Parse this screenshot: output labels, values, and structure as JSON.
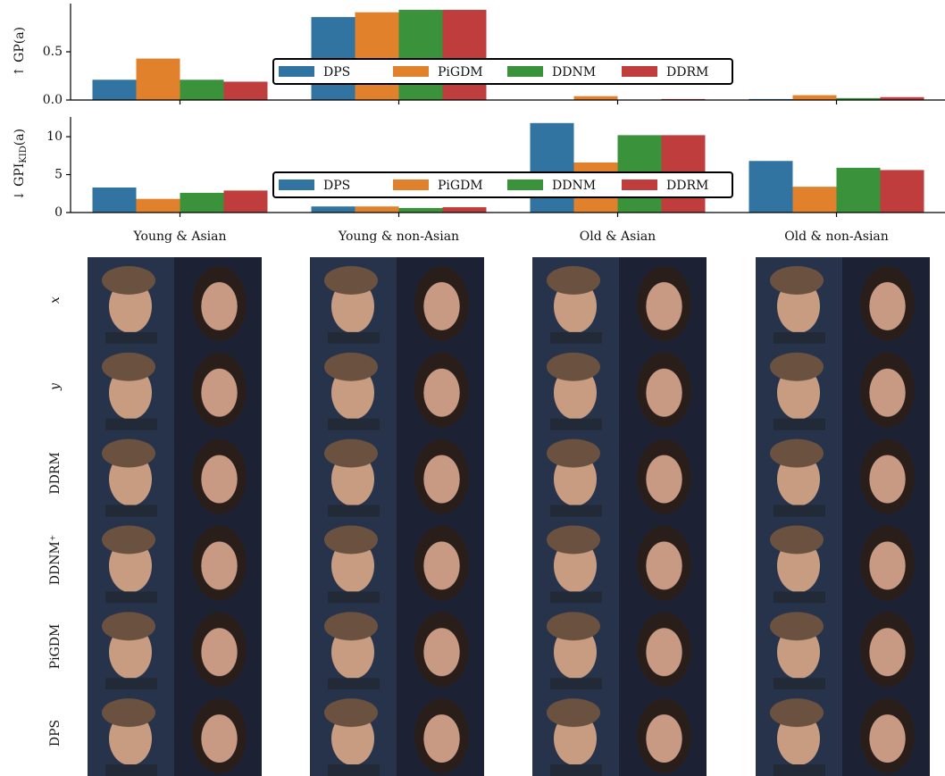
{
  "chart_data": [
    {
      "type": "bar",
      "ylabel": "↑ GP(a)",
      "series": [
        {
          "name": "DPS",
          "color": "#3274a1",
          "values": [
            0.21,
            0.86,
            0.0,
            0.01
          ]
        },
        {
          "name": "PiGDM",
          "color": "#e1812c",
          "values": [
            0.43,
            0.91,
            0.04,
            0.05
          ]
        },
        {
          "name": "DDNM",
          "color": "#3a923a",
          "values": [
            0.21,
            0.935,
            0.0,
            0.02
          ]
        },
        {
          "name": "DDRM",
          "color": "#c03d3e",
          "values": [
            0.19,
            0.935,
            0.01,
            0.03
          ]
        }
      ],
      "ylim": [
        0,
        1.0
      ],
      "yticks": [
        {
          "value": 0,
          "label": "0.0"
        },
        0.5
      ],
      "legend": "center"
    },
    {
      "type": "bar",
      "ylabel": [
        "↓ GPI",
        "KID",
        "(a)"
      ],
      "categories": [
        "Young & Asian",
        "Young & non-Asian",
        "Old & Asian",
        "Old & non-Asian"
      ],
      "series": [
        {
          "name": "DPS",
          "color": "#3274a1",
          "values": [
            3.3,
            0.8,
            11.8,
            6.8
          ]
        },
        {
          "name": "PiGDM",
          "color": "#e1812c",
          "values": [
            1.8,
            0.8,
            6.6,
            3.4
          ]
        },
        {
          "name": "DDNM",
          "color": "#3a923a",
          "values": [
            2.6,
            0.6,
            10.2,
            5.9
          ]
        },
        {
          "name": "DDRM",
          "color": "#c03d3e",
          "values": [
            2.9,
            0.7,
            10.2,
            5.6
          ]
        }
      ],
      "ylim": [
        0,
        12.6
      ],
      "yticks": [
        0,
        5,
        10
      ],
      "legend": "center"
    }
  ],
  "image_grid": {
    "row_labels": [
      "x",
      "y",
      "DDRM",
      "DDNM⁺",
      "PiGDM",
      "DPS"
    ]
  }
}
